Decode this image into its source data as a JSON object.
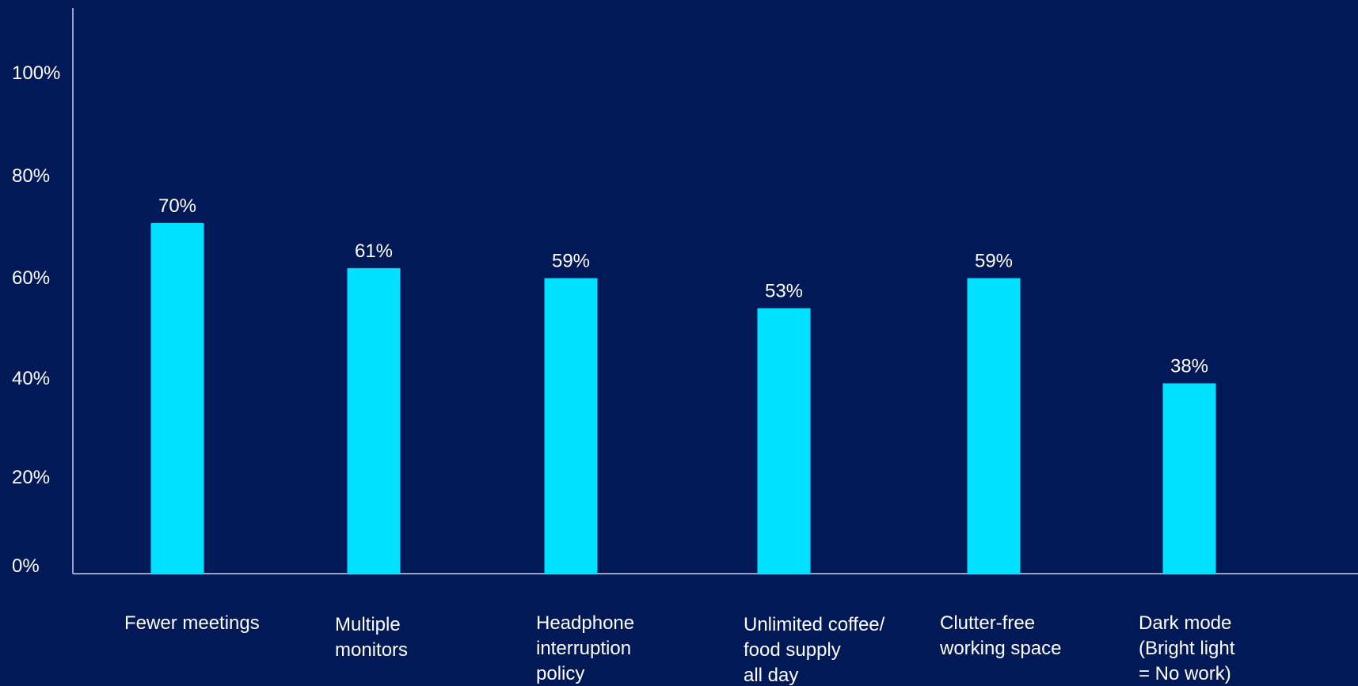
{
  "chart_data": {
    "type": "bar",
    "title": "",
    "xlabel": "",
    "ylabel": "",
    "categories": [
      [
        "Fewer meetings"
      ],
      [
        "Multiple",
        "monitors"
      ],
      [
        "Headphone",
        "interruption",
        "policy"
      ],
      [
        "Unlimited coffee/",
        "food supply",
        "all day"
      ],
      [
        "Clutter-free",
        "working space"
      ],
      [
        "Dark mode",
        "(Bright light",
        "= No work)"
      ]
    ],
    "values": [
      70,
      61,
      59,
      53,
      59,
      38
    ],
    "data_labels": [
      "70%",
      "61%",
      "59%",
      "53%",
      "59%",
      "38%"
    ],
    "y_ticks": [
      "0%",
      "20%",
      "40%",
      "60%",
      "80%",
      "100%"
    ],
    "ylim": [
      0,
      100
    ],
    "grid": false,
    "legend": "none",
    "colors": {
      "background": "#011a57",
      "bar": "#00e0ff",
      "axis": "#c9d2e8",
      "text": "#ffffff"
    }
  }
}
